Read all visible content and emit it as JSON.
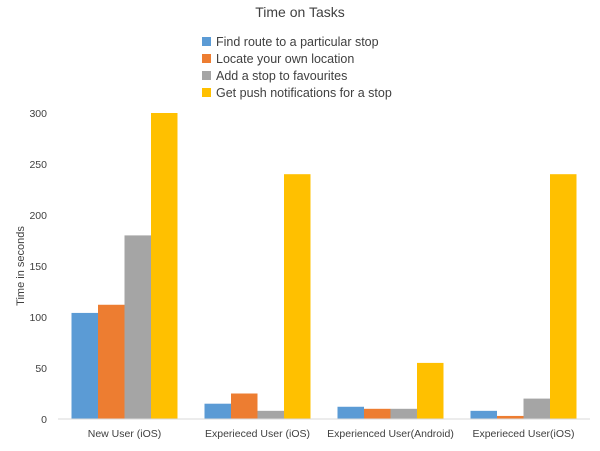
{
  "chart_data": {
    "type": "bar",
    "title": "Time on Tasks",
    "xlabel": "",
    "ylabel": "Time in seconds",
    "ylim": [
      0,
      300
    ],
    "yticks": [
      0,
      50,
      100,
      150,
      200,
      250,
      300
    ],
    "grid": false,
    "legend_position": "top",
    "categories": [
      "New User (iOS)",
      "Experieced User (iOS)",
      "Experienced User(Android)",
      "Experieced User(iOS)"
    ],
    "series": [
      {
        "name": "Find route to a particular stop",
        "color": "#5B9BD5",
        "values": [
          104,
          15,
          12,
          8
        ]
      },
      {
        "name": "Locate your own location",
        "color": "#ED7D31",
        "values": [
          112,
          25,
          10,
          3
        ]
      },
      {
        "name": "Add a stop to favourites",
        "color": "#A5A5A5",
        "values": [
          180,
          8,
          10,
          20
        ]
      },
      {
        "name": "Get push notifications for a stop",
        "color": "#FFC000",
        "values": [
          300,
          240,
          55,
          240
        ]
      }
    ]
  }
}
